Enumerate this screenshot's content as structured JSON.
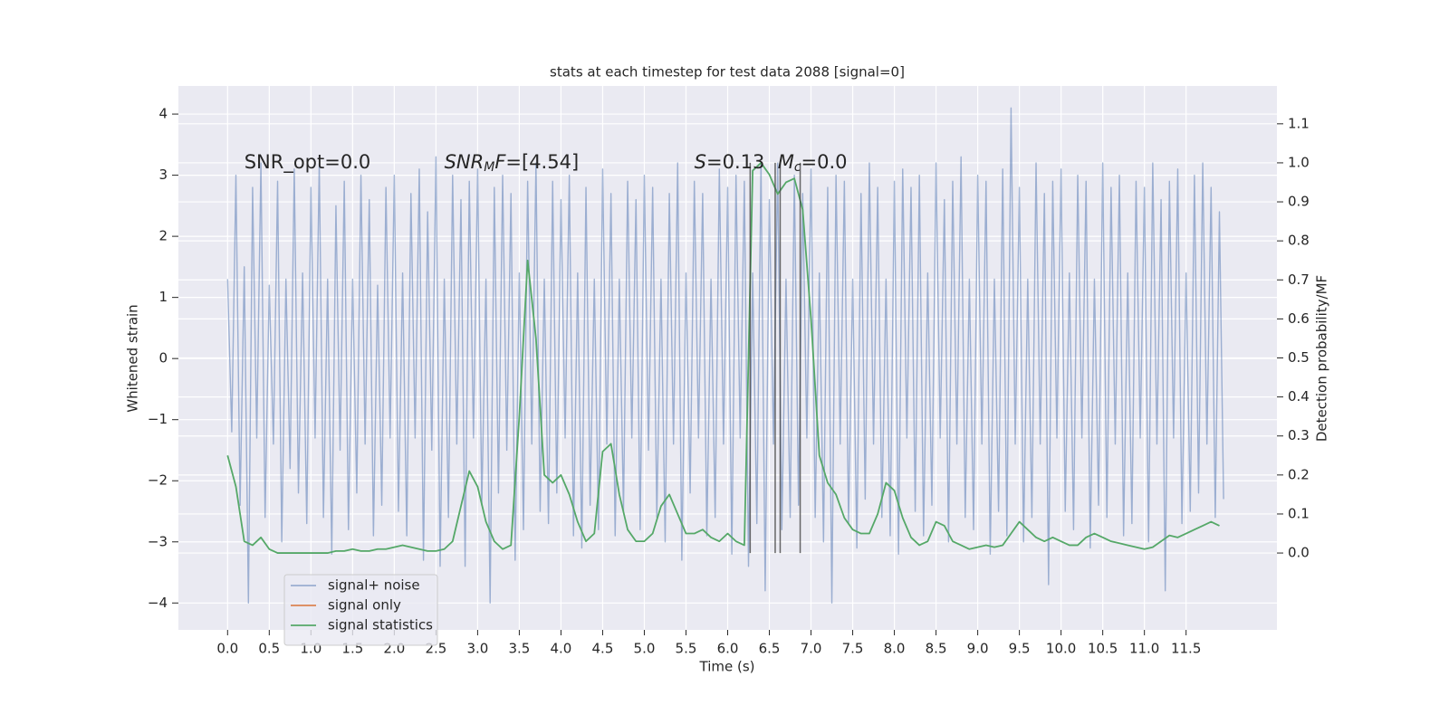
{
  "chart_data": {
    "type": "line",
    "title": "stats at each timestep for test data 2088 [signal=0]",
    "xlabel": "Time (s)",
    "ylabel": "Whitened strain",
    "y2label": "Detection probability/MF",
    "xlim": [
      -0.59,
      12.59
    ],
    "ylim": [
      -4.44,
      4.46
    ],
    "y2lim": [
      -0.197,
      1.197
    ],
    "xticks": [
      {
        "value": 0,
        "label": "0.0"
      },
      0.5,
      {
        "value": 1,
        "label": "1.0"
      },
      1.5,
      {
        "value": 2,
        "label": "2.0"
      },
      2.5,
      {
        "value": 3,
        "label": "3.0"
      },
      3.5,
      {
        "value": 4,
        "label": "4.0"
      },
      4.5,
      {
        "value": 5,
        "label": "5.0"
      },
      5.5,
      {
        "value": 6,
        "label": "6.0"
      },
      6.5,
      {
        "value": 7,
        "label": "7.0"
      },
      7.5,
      {
        "value": 8,
        "label": "8.0"
      },
      8.5,
      {
        "value": 9,
        "label": "9.0"
      },
      9.5,
      {
        "value": 10,
        "label": "10.0"
      },
      10.5,
      {
        "value": 11,
        "label": "11.0"
      },
      11.5
    ],
    "yticks": [
      {
        "value": -4,
        "label": "−4"
      },
      {
        "value": -3,
        "label": "−3"
      },
      {
        "value": -2,
        "label": "−2"
      },
      {
        "value": -1,
        "label": "−1"
      },
      0,
      1,
      2,
      3,
      4
    ],
    "y2ticks": [
      {
        "value": 0,
        "label": "0.0"
      },
      0.1,
      0.2,
      0.3,
      0.4,
      0.5,
      0.6,
      0.7,
      0.8,
      0.9,
      {
        "value": 1,
        "label": "1.0"
      },
      1.1
    ],
    "grid": true,
    "legend": "lower left",
    "series": [
      {
        "name": "signal+ noise",
        "color": "#4c72b0",
        "alpha": 0.5,
        "x": [
          0,
          0.05,
          0.1,
          0.15,
          0.2,
          0.25,
          0.3,
          0.35,
          0.4,
          0.45,
          0.5,
          0.55,
          0.6,
          0.65,
          0.7,
          0.75,
          0.8,
          0.85,
          0.9,
          0.95,
          1,
          1.05,
          1.1,
          1.15,
          1.2,
          1.25,
          1.3,
          1.35,
          1.4,
          1.45,
          1.5,
          1.55,
          1.6,
          1.65,
          1.7,
          1.75,
          1.8,
          1.85,
          1.9,
          1.95,
          2,
          2.05,
          2.1,
          2.15,
          2.2,
          2.25,
          2.3,
          2.35,
          2.4,
          2.45,
          2.5,
          2.55,
          2.6,
          2.65,
          2.7,
          2.75,
          2.8,
          2.85,
          2.9,
          2.95,
          3,
          3.05,
          3.1,
          3.15,
          3.2,
          3.25,
          3.3,
          3.35,
          3.4,
          3.45,
          3.5,
          3.55,
          3.6,
          3.65,
          3.7,
          3.75,
          3.8,
          3.85,
          3.9,
          3.95,
          4,
          4.05,
          4.1,
          4.15,
          4.2,
          4.25,
          4.3,
          4.35,
          4.4,
          4.45,
          4.5,
          4.55,
          4.6,
          4.65,
          4.7,
          4.75,
          4.8,
          4.85,
          4.9,
          4.95,
          5,
          5.05,
          5.1,
          5.15,
          5.2,
          5.25,
          5.3,
          5.35,
          5.4,
          5.45,
          5.5,
          5.55,
          5.6,
          5.65,
          5.7,
          5.75,
          5.8,
          5.85,
          5.9,
          5.95,
          6,
          6.05,
          6.1,
          6.15,
          6.2,
          6.25,
          6.3,
          6.35,
          6.4,
          6.45,
          6.5,
          6.55,
          6.6,
          6.65,
          6.7,
          6.75,
          6.8,
          6.85,
          6.9,
          6.95,
          7,
          7.05,
          7.1,
          7.15,
          7.2,
          7.25,
          7.3,
          7.35,
          7.4,
          7.45,
          7.5,
          7.55,
          7.6,
          7.65,
          7.7,
          7.75,
          7.8,
          7.85,
          7.9,
          7.95,
          8,
          8.05,
          8.1,
          8.15,
          8.2,
          8.25,
          8.3,
          8.35,
          8.4,
          8.45,
          8.5,
          8.55,
          8.6,
          8.65,
          8.7,
          8.75,
          8.8,
          8.85,
          8.9,
          8.95,
          9,
          9.05,
          9.1,
          9.15,
          9.2,
          9.25,
          9.3,
          9.35,
          9.4,
          9.45,
          9.5,
          9.55,
          9.6,
          9.65,
          9.7,
          9.75,
          9.8,
          9.85,
          9.9,
          9.95,
          10,
          10.05,
          10.1,
          10.15,
          10.2,
          10.25,
          10.3,
          10.35,
          10.4,
          10.45,
          10.5,
          10.55,
          10.6,
          10.65,
          10.7,
          10.75,
          10.8,
          10.85,
          10.9,
          10.95,
          11,
          11.05,
          11.1,
          11.15,
          11.2,
          11.25,
          11.3,
          11.35,
          11.4,
          11.45,
          11.5,
          11.55,
          11.6,
          11.65,
          11.7,
          11.75,
          11.8,
          11.85,
          11.9,
          11.95
        ],
        "values": [
          1.3,
          -1.2,
          3.0,
          -2.4,
          1.5,
          -4.0,
          2.8,
          -1.3,
          3.2,
          -2.6,
          1.2,
          -1.4,
          2.9,
          -3.0,
          1.3,
          -1.8,
          3.1,
          -2.2,
          1.4,
          -2.7,
          2.8,
          -1.3,
          3.2,
          -2.6,
          1.3,
          -3.2,
          2.5,
          -1.5,
          2.9,
          -2.8,
          1.3,
          -2.2,
          3.0,
          -1.4,
          2.6,
          -2.9,
          1.2,
          -2.4,
          2.8,
          -1.3,
          3.0,
          -2.5,
          1.4,
          -2.9,
          2.7,
          -1.3,
          3.1,
          -3.3,
          2.4,
          -1.5,
          3.3,
          -3.4,
          1.3,
          -2.6,
          3.0,
          -1.4,
          2.6,
          -3.4,
          2.9,
          -1.3,
          3.1,
          -2.4,
          1.3,
          -4.0,
          2.8,
          -2.2,
          3.0,
          -1.5,
          2.7,
          -3.3,
          1.4,
          -2.8,
          2.9,
          -1.4,
          3.2,
          -2.5,
          1.3,
          -2.7,
          2.9,
          -2.2,
          2.6,
          -1.3,
          3.0,
          -2.9,
          1.4,
          -3.1,
          2.8,
          -2.4,
          1.3,
          -2.8,
          3.1,
          -1.4,
          2.7,
          -2.9,
          1.3,
          -2.5,
          2.9,
          -1.3,
          2.6,
          -2.8,
          3.0,
          -1.5,
          2.8,
          -2.6,
          1.3,
          -3.0,
          2.7,
          -1.4,
          3.2,
          -3.3,
          1.4,
          -2.2,
          2.9,
          -1.3,
          2.7,
          -2.9,
          1.3,
          -2.6,
          3.1,
          -1.4,
          2.8,
          -3.2,
          3.0,
          -1.3,
          2.9,
          -3.4,
          1.4,
          -2.7,
          3.2,
          -3.8,
          2.6,
          -1.4,
          3.2,
          -2.8,
          1.3,
          -2.6,
          3.0,
          -2.4,
          2.7,
          -1.3,
          3.1,
          -2.6,
          1.4,
          -3.0,
          2.8,
          -4.0,
          3.0,
          -1.4,
          2.9,
          -2.7,
          1.3,
          -3.1,
          2.7,
          -2.3,
          3.2,
          -1.4,
          2.8,
          -2.6,
          1.3,
          -2.9,
          2.9,
          -3.2,
          3.1,
          -1.3,
          2.8,
          -2.5,
          3.0,
          -2.9,
          1.4,
          -2.4,
          3.2,
          -1.3,
          2.6,
          -3.0,
          2.9,
          -1.4,
          3.3,
          -2.6,
          1.3,
          -2.8,
          3.0,
          -1.4,
          2.9,
          -3.2,
          1.3,
          -2.5,
          3.1,
          -2.9,
          4.1,
          -1.4,
          2.8,
          -3.0,
          1.3,
          -2.6,
          3.2,
          -1.4,
          2.7,
          -3.7,
          2.9,
          -1.3,
          3.1,
          -2.5,
          1.4,
          -2.8,
          3.0,
          -1.3,
          2.9,
          -3.1,
          1.3,
          -2.4,
          3.2,
          -2.6,
          2.8,
          -1.4,
          3.0,
          -2.9,
          1.4,
          -2.7,
          2.9,
          -1.3,
          2.8,
          -3.0,
          3.2,
          -1.4,
          2.6,
          -3.8,
          2.9,
          -1.3,
          3.1,
          -2.7,
          1.4,
          -2.5,
          3.0,
          -2.2,
          3.2,
          -1.4,
          2.8,
          -2.6,
          2.4,
          -2.3
        ]
      },
      {
        "name": "signal only",
        "color": "#dd8452",
        "x": [
          0,
          11.95
        ],
        "values": [
          null,
          null
        ]
      },
      {
        "name": "signal statistics",
        "color": "#55a868",
        "axis": "y2",
        "x": [
          0,
          0.1,
          0.2,
          0.3,
          0.4,
          0.5,
          0.6,
          0.7,
          0.8,
          0.9,
          1,
          1.1,
          1.2,
          1.3,
          1.4,
          1.5,
          1.6,
          1.7,
          1.8,
          1.9,
          2,
          2.1,
          2.2,
          2.3,
          2.4,
          2.5,
          2.6,
          2.7,
          2.8,
          2.9,
          3,
          3.1,
          3.2,
          3.3,
          3.4,
          3.5,
          3.6,
          3.7,
          3.8,
          3.9,
          4,
          4.1,
          4.2,
          4.3,
          4.4,
          4.5,
          4.6,
          4.7,
          4.8,
          4.9,
          5,
          5.1,
          5.2,
          5.3,
          5.4,
          5.5,
          5.6,
          5.7,
          5.8,
          5.9,
          6,
          6.1,
          6.2,
          6.3,
          6.4,
          6.5,
          6.6,
          6.7,
          6.8,
          6.9,
          7,
          7.1,
          7.2,
          7.3,
          7.4,
          7.5,
          7.6,
          7.7,
          7.8,
          7.9,
          8,
          8.1,
          8.2,
          8.3,
          8.4,
          8.5,
          8.6,
          8.7,
          8.8,
          8.9,
          9,
          9.1,
          9.2,
          9.3,
          9.4,
          9.5,
          9.6,
          9.7,
          9.8,
          9.9,
          10,
          10.1,
          10.2,
          10.3,
          10.4,
          10.5,
          10.6,
          10.7,
          10.8,
          10.9,
          11,
          11.1,
          11.2,
          11.3,
          11.4,
          11.5,
          11.6,
          11.7,
          11.8,
          11.9
        ],
        "values": [
          0.25,
          0.17,
          0.03,
          0.02,
          0.04,
          0.01,
          0,
          0,
          0,
          0,
          0,
          0,
          0,
          0.005,
          0.005,
          0.01,
          0.005,
          0.005,
          0.01,
          0.01,
          0.015,
          0.02,
          0.015,
          0.01,
          0.005,
          0.005,
          0.01,
          0.03,
          0.12,
          0.21,
          0.17,
          0.08,
          0.03,
          0.01,
          0.02,
          0.35,
          0.75,
          0.55,
          0.2,
          0.18,
          0.2,
          0.15,
          0.08,
          0.03,
          0.05,
          0.26,
          0.28,
          0.15,
          0.06,
          0.03,
          0.03,
          0.05,
          0.12,
          0.15,
          0.1,
          0.05,
          0.05,
          0.06,
          0.04,
          0.03,
          0.05,
          0.03,
          0.02,
          0.98,
          1.0,
          0.97,
          0.92,
          0.95,
          0.96,
          0.88,
          0.6,
          0.25,
          0.18,
          0.15,
          0.09,
          0.06,
          0.05,
          0.05,
          0.1,
          0.18,
          0.16,
          0.09,
          0.04,
          0.02,
          0.03,
          0.08,
          0.07,
          0.03,
          0.02,
          0.01,
          0.015,
          0.02,
          0.015,
          0.02,
          0.05,
          0.08,
          0.06,
          0.04,
          0.03,
          0.04,
          0.03,
          0.02,
          0.02,
          0.04,
          0.05,
          0.04,
          0.03,
          0.025,
          0.02,
          0.015,
          0.01,
          0.015,
          0.03,
          0.045,
          0.04,
          0.05,
          0.06,
          0.07,
          0.08,
          0.07
        ]
      }
    ],
    "vlines": [
      6.27,
      6.57,
      6.63,
      6.87
    ],
    "vline_range": [
      0,
      1
    ],
    "vline_color": "#444444",
    "annotations": [
      {
        "x": 0.2,
        "y": 1.0,
        "segments": [
          {
            "text": "SNR_opt=0.0"
          }
        ]
      },
      {
        "x": 2.6,
        "y": 1.0,
        "segments": [
          {
            "text": "SNR",
            "style": "italic"
          },
          {
            "text": "M",
            "style": "sub"
          },
          {
            "text": "F",
            "style": "italic"
          },
          {
            "text": "=[4.54]"
          }
        ]
      },
      {
        "x": 5.6,
        "y": 1.0,
        "segments": [
          {
            "text": "S",
            "style": "italic"
          },
          {
            "text": "=0.13"
          }
        ]
      },
      {
        "x": 6.6,
        "y": 1.0,
        "segments": [
          {
            "text": "M",
            "style": "italic"
          },
          {
            "text": "c",
            "style": "sub"
          },
          {
            "text": "=0.0"
          }
        ]
      }
    ]
  }
}
